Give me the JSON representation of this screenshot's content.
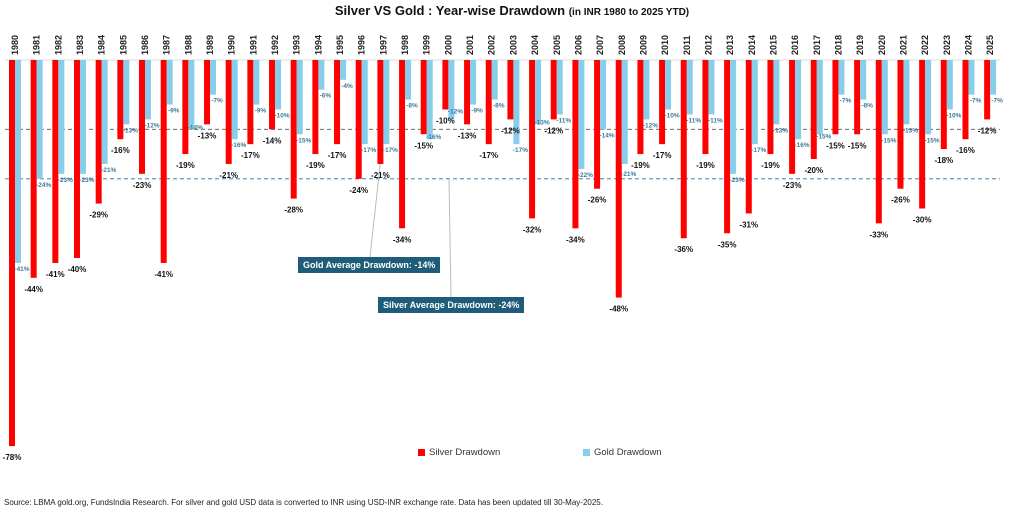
{
  "chart_data": {
    "type": "bar",
    "title": "Silver VS Gold : Year-wise Drawdown",
    "subtitle": "(in INR 1980 to 2025 YTD)",
    "categories": [
      "1980",
      "1981",
      "1982",
      "1983",
      "1984",
      "1985",
      "1986",
      "1987",
      "1988",
      "1989",
      "1990",
      "1991",
      "1992",
      "1993",
      "1994",
      "1995",
      "1996",
      "1997",
      "1998",
      "1999",
      "2000",
      "2001",
      "2002",
      "2003",
      "2004",
      "2005",
      "2006",
      "2007",
      "2008",
      "2009",
      "2010",
      "2011",
      "2012",
      "2013",
      "2014",
      "2015",
      "2016",
      "2017",
      "2018",
      "2019",
      "2020",
      "2021",
      "2022",
      "2023",
      "2024",
      "2025"
    ],
    "series": [
      {
        "name": "Silver Drawdown",
        "color": "#ff0000",
        "values": [
          -78,
          -44,
          -41,
          -40,
          -29,
          -16,
          -23,
          -41,
          -19,
          -13,
          -21,
          -17,
          -14,
          -28,
          -19,
          -17,
          -24,
          -21,
          -34,
          -15,
          -10,
          -13,
          -17,
          -12,
          -32,
          -12,
          -34,
          -26,
          -48,
          -19,
          -17,
          -36,
          -19,
          -35,
          -31,
          -19,
          -23,
          -20,
          -15,
          -15,
          -33,
          -26,
          -30,
          -18,
          -16,
          -12
        ]
      },
      {
        "name": "Gold Drawdown",
        "color": "#87ceeb",
        "values": [
          -41,
          -24,
          -23,
          -23,
          -21,
          -13,
          -12,
          -9,
          -14,
          -7,
          -16,
          -9,
          -10,
          -15,
          -6,
          -4,
          -17,
          -17,
          -8,
          -16,
          -12,
          -9,
          -8,
          -17,
          -13,
          -11,
          -22,
          -14,
          -21,
          -12,
          -10,
          -11,
          -11,
          -23,
          -17,
          -13,
          -16,
          -15,
          -7,
          -8,
          -15,
          -13,
          -15,
          -10,
          -7,
          -7
        ]
      }
    ],
    "averages": {
      "gold": -14,
      "silver": -24
    },
    "ylim": [
      -80,
      0
    ],
    "value_suffix": "%",
    "legend_position": "bottom-center",
    "grid": false
  },
  "annotations": {
    "gold_avg": "Gold Average Drawdown: -14%",
    "silver_avg": "Silver Average Drawdown: -24%"
  },
  "source": "Source: LBMA gold.org, FundsIndia Research. For silver and gold USD data is converted to INR using USD-INR exchange rate. Data has been updated till 30-May-2025.",
  "colors": {
    "silver": "#ff0000",
    "gold": "#87ceeb",
    "gold_label": "#3d7a9a",
    "annotation_bg": "#1f5c7a"
  }
}
